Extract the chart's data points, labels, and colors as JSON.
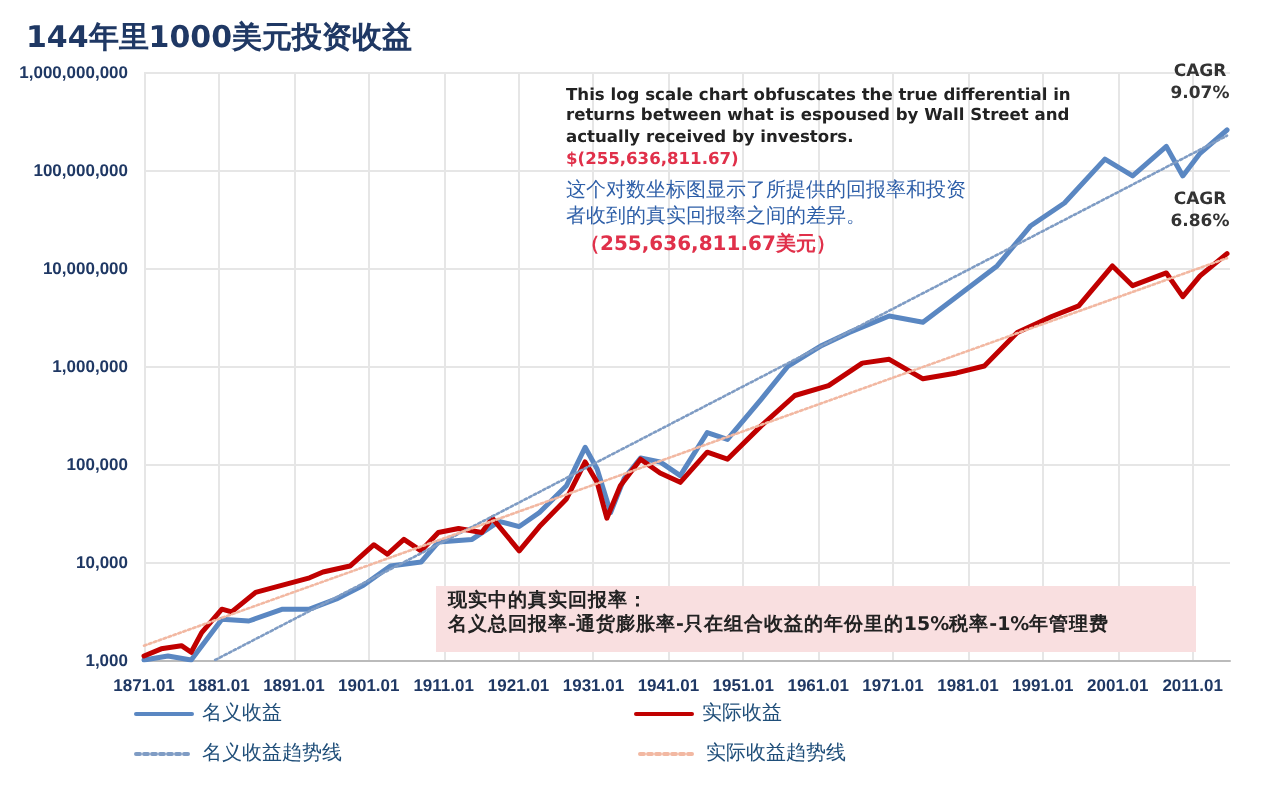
{
  "chart_data": {
    "type": "line",
    "title": "144年里1000美元投资收益",
    "series": [
      {
        "name": "名义收益",
        "color": "#5a87c2",
        "line_style": "solid",
        "x": [
          1871,
          1874.2,
          1877.3,
          1881.4,
          1885,
          1889.5,
          1893.1,
          1896.7,
          1900.3,
          1903.9,
          1908,
          1910.3,
          1914.8,
          1918.4,
          1921.1,
          1923.8,
          1927.4,
          1929.9,
          1931.5,
          1933.3,
          1935.1,
          1937.3,
          1939.9,
          1942.6,
          1946.2,
          1948.9,
          1953.4,
          1957,
          1961.5,
          1965.1,
          1970.5,
          1975,
          1979.5,
          1984.9,
          1989.4,
          1993.9,
          1999.3,
          2003,
          2007.5,
          2009.7,
          2012,
          2015.6
        ],
        "values": [
          1000,
          1100,
          1000,
          2600,
          2500,
          3300,
          3300,
          4200,
          5800,
          9100,
          10000,
          16000,
          17000,
          26000,
          23000,
          32000,
          60000,
          148000,
          89000,
          32000,
          71000,
          115000,
          105000,
          76000,
          209000,
          178000,
          457000,
          1000000,
          1620000,
          2190000,
          3240000,
          2800000,
          5100000,
          10500000,
          27000000,
          46000000,
          129000000,
          87000000,
          174000000,
          87000000,
          148000000,
          256000000
        ]
      },
      {
        "name": "实际收益",
        "color": "#c00000",
        "line_style": "solid",
        "x": [
          1871,
          1873.3,
          1876,
          1877.3,
          1878.7,
          1881.4,
          1882.7,
          1885.9,
          1889.5,
          1893.1,
          1894.9,
          1898.5,
          1901.7,
          1903.5,
          1905.7,
          1908,
          1910.3,
          1913,
          1916.1,
          1917.5,
          1921.1,
          1923.8,
          1927.4,
          1929.9,
          1931.5,
          1932.8,
          1934.6,
          1937.3,
          1939.9,
          1942.6,
          1946.2,
          1948.9,
          1953.4,
          1957.9,
          1962.4,
          1966.9,
          1970.5,
          1975,
          1979.5,
          1983.2,
          1987.6,
          1992.2,
          1995.8,
          2000.3,
          2003,
          2007.5,
          2009.7,
          2012,
          2015.6
        ],
        "values": [
          1100,
          1300,
          1400,
          1200,
          1900,
          3300,
          3100,
          4900,
          5800,
          6900,
          7900,
          9100,
          15000,
          12000,
          17000,
          13000,
          20000,
          22000,
          20000,
          28000,
          13000,
          23000,
          44000,
          105000,
          65000,
          28000,
          60000,
          112000,
          81000,
          65000,
          132000,
          112000,
          245000,
          500000,
          630000,
          1070000,
          1170000,
          740000,
          850000,
          1000000,
          2200000,
          3200000,
          4100000,
          10500000,
          6600000,
          8900000,
          5100000,
          8300000,
          14000000
        ]
      },
      {
        "name": "名义收益趋势线",
        "color": "#7f9cc4",
        "line_style": "dotted",
        "x": [
          1880.5,
          2015.6
        ],
        "values": [
          1000,
          224000000
        ]
      },
      {
        "name": "实际收益趋势线",
        "color": "#f2b8a2",
        "line_style": "dotted",
        "x": [
          1871,
          2015.6
        ],
        "values": [
          1400,
          12600000
        ]
      }
    ],
    "xlim": [
      1871,
      2016
    ],
    "xticks": [
      1871.01,
      1881.01,
      1891.01,
      1901.01,
      1911.01,
      1921.01,
      1931.01,
      1941.01,
      1951.01,
      1961.01,
      1971.01,
      1981.01,
      1991.01,
      2001.01,
      2011.01
    ],
    "ylim": [
      1000,
      1000000000
    ],
    "yticks": [
      {
        "value": 1000,
        "label": "1,000"
      },
      {
        "value": 10000,
        "label": "10,000"
      },
      {
        "value": 100000,
        "label": "100,000"
      },
      {
        "value": 1000000,
        "label": "1,000,000"
      },
      {
        "value": 10000000,
        "label": "10,000,000"
      },
      {
        "value": 100000000,
        "label": "100,000,000"
      },
      {
        "value": 1000000000,
        "label": "1,000,000,000"
      }
    ],
    "log": "y",
    "grid": true,
    "legend": "bottom",
    "marker": "none",
    "annotations": [
      "This log scale chart obfuscates the true differential in returns between what is espoused by Wall Street and actually received by investors.",
      "$(255,636,811.67)",
      "这个对数坐标图显示了所提供的回报率和投资者收到的真实回报率之间的差异。",
      "（255,636,811.67美元）",
      "现实中的真实回报率：",
      "名义总回报率-通货膨胀率-只在组合收益的年份里的15%税率-1%年管理费",
      "CAGR 9.07%",
      "CAGR 6.86%"
    ]
  }
}
